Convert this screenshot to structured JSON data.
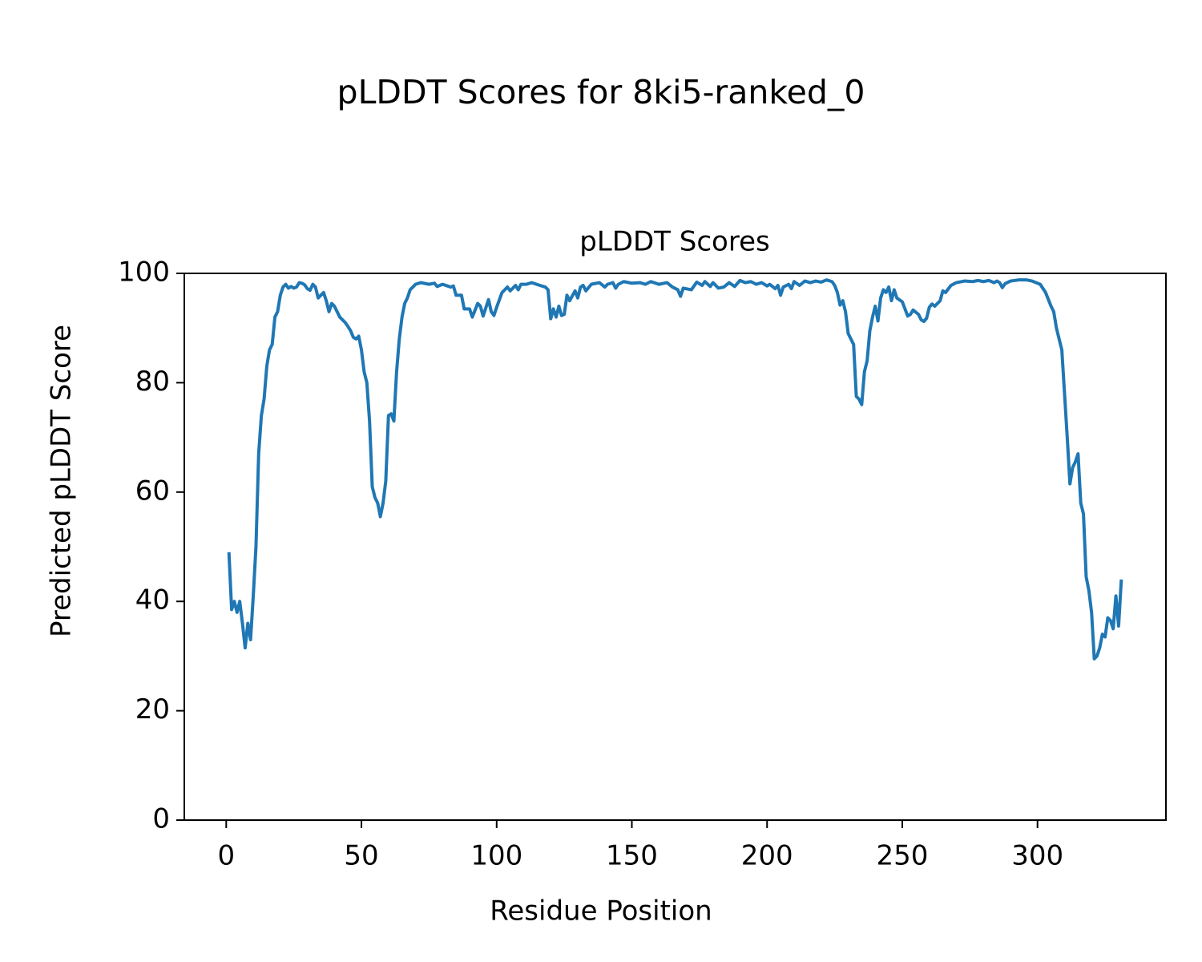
{
  "chart_data": {
    "type": "line",
    "title": "pLDDT Scores for 8ki5-ranked_0",
    "subtitle": "pLDDT Scores",
    "x_label": "Residue Position",
    "y_label": "Predicted pLDDT Score",
    "color": "#1f77b4",
    "x": [
      1,
      2,
      3,
      4,
      5,
      6,
      7,
      8,
      9,
      10,
      11,
      12,
      13,
      14,
      15,
      16,
      17,
      18,
      19,
      20,
      21,
      22,
      23,
      24,
      25,
      26,
      27,
      28,
      29,
      30,
      31,
      32,
      33,
      34,
      35,
      36,
      37,
      38,
      39,
      40,
      41,
      42,
      43,
      44,
      45,
      46,
      47,
      48,
      49,
      50,
      51,
      52,
      53,
      54,
      55,
      56,
      57,
      58,
      59,
      60,
      61,
      62,
      63,
      64,
      65,
      66,
      67,
      68,
      69,
      70,
      72,
      75,
      77,
      78,
      80,
      83,
      84,
      85,
      87,
      88,
      90,
      91,
      93,
      94,
      95,
      97,
      98,
      99,
      100,
      102,
      104,
      105,
      107,
      108,
      109,
      111,
      113,
      116,
      118,
      119,
      120,
      121,
      122,
      123,
      124,
      125,
      126,
      127,
      129,
      130,
      131,
      132,
      133,
      135,
      138,
      140,
      141,
      143,
      144,
      145,
      147,
      150,
      153,
      155,
      157,
      160,
      163,
      165,
      167,
      168,
      169,
      172,
      174,
      176,
      177,
      179,
      180,
      182,
      184,
      186,
      188,
      190,
      192,
      194,
      196,
      198,
      200,
      201,
      203,
      204,
      205,
      206,
      208,
      209,
      210,
      212,
      214,
      216,
      218,
      220,
      222,
      224,
      225,
      226,
      227,
      228,
      229,
      230,
      231,
      232,
      233,
      234,
      235,
      236,
      237,
      238,
      239,
      240,
      241,
      242,
      243,
      244,
      245,
      246,
      247,
      248,
      250,
      251,
      252,
      253,
      254,
      256,
      257,
      258,
      259,
      260,
      261,
      262,
      264,
      265,
      266,
      268,
      270,
      273,
      276,
      278,
      280,
      282,
      284,
      285,
      286,
      287,
      288,
      290,
      293,
      296,
      298,
      301,
      303,
      305,
      306,
      307,
      308,
      309,
      310,
      311,
      312,
      313,
      314,
      315,
      316,
      317,
      318,
      319,
      320,
      321,
      322,
      323,
      324,
      325,
      326,
      327,
      328,
      329,
      330,
      331
    ],
    "values": [
      49,
      38.5,
      40,
      38,
      40,
      36,
      31.5,
      36,
      33,
      41,
      50,
      67,
      74,
      77,
      83,
      86,
      87,
      92,
      93,
      96,
      97.5,
      98,
      97.3,
      97.6,
      97.3,
      97.5,
      98.3,
      98.2,
      97.9,
      97.2,
      96.9,
      98,
      97.5,
      95.5,
      96,
      96.5,
      95,
      93,
      94.5,
      94,
      93,
      92,
      91.5,
      91,
      90.3,
      89.5,
      88.3,
      88,
      88.5,
      86,
      82,
      80,
      73,
      61,
      59,
      58,
      55.5,
      58,
      62,
      74,
      74.3,
      73,
      82,
      88,
      92,
      94.5,
      95.5,
      97,
      97.5,
      98,
      98.3,
      98,
      98.2,
      97.6,
      98,
      97.5,
      97.7,
      96,
      96,
      93.5,
      93.5,
      92,
      94.5,
      94,
      92.2,
      95.2,
      93,
      92.3,
      93.8,
      96.5,
      97.5,
      96.8,
      97.8,
      97,
      98,
      98,
      98.3,
      97.8,
      97.5,
      97,
      91.7,
      93.5,
      92,
      94,
      92.3,
      92.5,
      96,
      95,
      96.8,
      95.5,
      97.5,
      97.8,
      96.8,
      98,
      98.3,
      97.5,
      98,
      98.3,
      97.3,
      98,
      98.5,
      98.2,
      98.3,
      98,
      98.5,
      98,
      98.3,
      97.5,
      97,
      95.8,
      97.3,
      97,
      98.4,
      97.8,
      98.5,
      97.6,
      98.3,
      97.3,
      97.5,
      98.3,
      97.6,
      98.7,
      98.3,
      98.5,
      98,
      98.3,
      97.7,
      98,
      97.2,
      97.8,
      96,
      97.5,
      98,
      97.2,
      98.5,
      97.8,
      98.6,
      98.3,
      98.6,
      98.4,
      98.8,
      98.5,
      97.8,
      96.5,
      94.2,
      95,
      93,
      89,
      88,
      87,
      77.5,
      77,
      76,
      82,
      84,
      89.5,
      92,
      94,
      91.3,
      95.5,
      97,
      96.5,
      97.5,
      95,
      97,
      95.5,
      94.8,
      93.5,
      92.2,
      92.5,
      93.3,
      92.5,
      91.5,
      91.2,
      91.8,
      93.8,
      94.4,
      94,
      95,
      96.8,
      96.5,
      97.8,
      98.3,
      98.6,
      98.5,
      98.7,
      98.5,
      98.7,
      98.3,
      98.6,
      98.3,
      97.4,
      98.1,
      98.6,
      98.8,
      98.8,
      98.6,
      98,
      96.5,
      94,
      93,
      90,
      88,
      86,
      78,
      70,
      61.5,
      64.5,
      65.5,
      67,
      58,
      56,
      44.5,
      42,
      38,
      29.5,
      30,
      31.5,
      34,
      33.5,
      37,
      36.5,
      35,
      41,
      35.5,
      44
    ],
    "xlim": [
      -15.5,
      347.5
    ],
    "xticks": [
      0,
      50,
      100,
      150,
      200,
      250,
      300
    ],
    "ylim": [
      0,
      100
    ],
    "yticks": [
      0,
      20,
      40,
      60,
      80,
      100
    ],
    "grid": false
  }
}
